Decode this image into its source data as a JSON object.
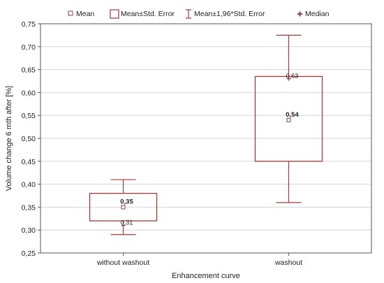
{
  "chart_data": {
    "type": "box",
    "xlabel": "Enhancement curve",
    "ylabel": "Volume change 6 mth after [%]",
    "ylim": [
      0.25,
      0.75
    ],
    "yticks": [
      0.25,
      0.3,
      0.35,
      0.4,
      0.45,
      0.5,
      0.55,
      0.6,
      0.65,
      0.7,
      0.75
    ],
    "grid": true,
    "legend_position": "top",
    "legend": [
      {
        "key": "mean",
        "label": "Mean"
      },
      {
        "key": "se",
        "label": "Mean±Std. Error"
      },
      {
        "key": "ci",
        "label": "Mean±1,96*Std. Error"
      },
      {
        "key": "median",
        "label": "Median"
      }
    ],
    "categories": [
      "without washout",
      "washout"
    ],
    "groups": [
      {
        "category": "without washout",
        "mean": 0.35,
        "se_low": 0.32,
        "se_high": 0.38,
        "ci_low": 0.29,
        "ci_high": 0.41,
        "median": 0.31,
        "mean_label": "0,35",
        "median_label": "0,31"
      },
      {
        "category": "washout",
        "mean": 0.54,
        "se_low": 0.45,
        "se_high": 0.635,
        "ci_low": 0.36,
        "ci_high": 0.725,
        "median": 0.63,
        "mean_label": "0,54",
        "median_label": "0,63"
      }
    ],
    "colors": {
      "box": "#a33a3a",
      "grid": "#d6d6d6",
      "axis": "#555555"
    }
  }
}
